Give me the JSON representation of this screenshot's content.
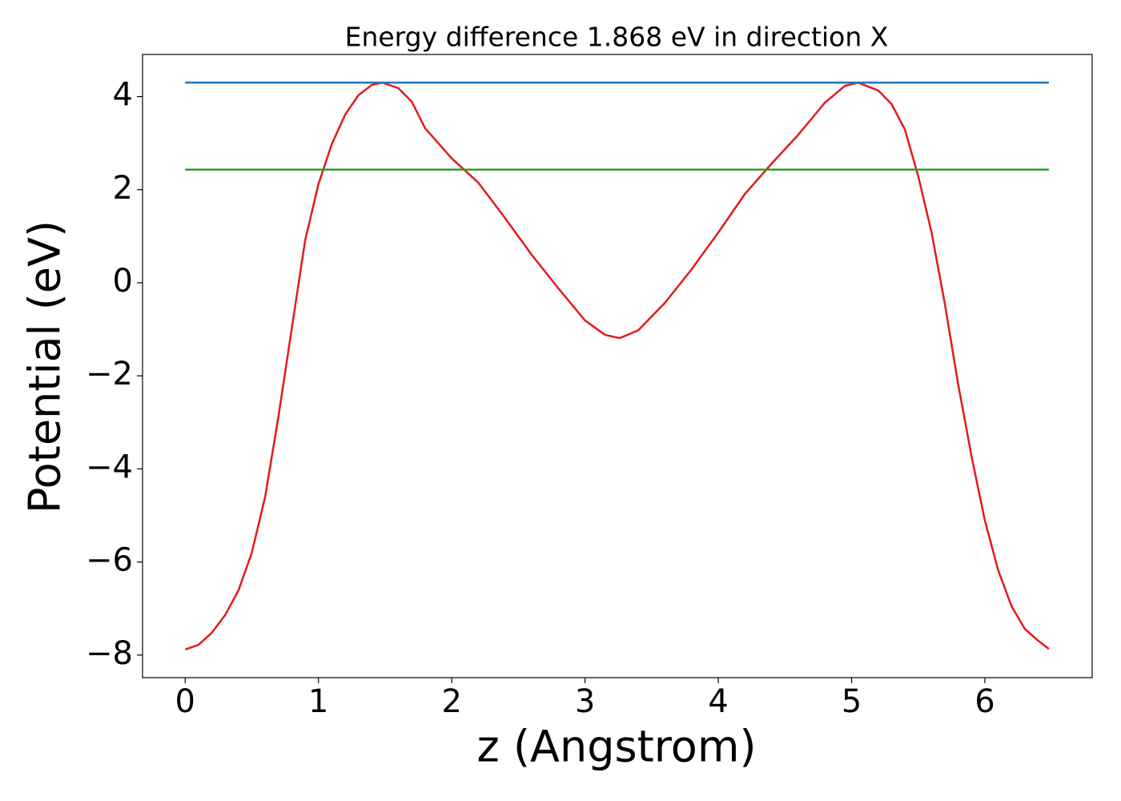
{
  "chart_data": {
    "type": "line",
    "title": "Energy difference 1.868 eV in direction X",
    "x_label": "z (Angstrom)",
    "y_label": "Potential (eV)",
    "xlim": [
      -0.32,
      6.805
    ],
    "ylim": [
      -8.485,
      4.905
    ],
    "xticks": [
      0,
      1,
      2,
      3,
      4,
      5,
      6
    ],
    "yticks": [
      {
        "value": -8,
        "label": "−8"
      },
      {
        "value": -6,
        "label": "−6"
      },
      {
        "value": -4,
        "label": "−4"
      },
      {
        "value": -2,
        "label": "−2"
      },
      0,
      2,
      4
    ],
    "series": [
      {
        "color": "#e41a1c",
        "x": [
          0,
          0.1,
          0.2,
          0.3,
          0.4,
          0.5,
          0.6,
          0.7,
          0.8,
          0.9,
          1.0,
          1.1,
          1.2,
          1.3,
          1.4,
          1.48,
          1.6,
          1.7,
          1.8,
          2.0,
          2.2,
          2.4,
          2.6,
          2.8,
          3.0,
          3.15,
          3.26,
          3.4,
          3.6,
          3.8,
          4.0,
          4.2,
          4.4,
          4.6,
          4.8,
          4.95,
          5.05,
          5.2,
          5.3,
          5.4,
          5.5,
          5.6,
          5.7,
          5.8,
          5.9,
          6.0,
          6.1,
          6.2,
          6.3,
          6.4,
          6.48
        ],
        "values": [
          -7.88,
          -7.78,
          -7.52,
          -7.14,
          -6.61,
          -5.8,
          -4.6,
          -2.87,
          -0.98,
          0.91,
          2.12,
          2.98,
          3.61,
          4.03,
          4.25,
          4.3,
          4.18,
          3.89,
          3.32,
          2.67,
          2.15,
          1.39,
          0.6,
          -0.12,
          -0.81,
          -1.12,
          -1.19,
          -1.02,
          -0.43,
          0.29,
          1.08,
          1.91,
          2.56,
          3.18,
          3.87,
          4.23,
          4.3,
          4.13,
          3.84,
          3.29,
          2.29,
          1.08,
          -0.46,
          -2.19,
          -3.73,
          -5.11,
          -6.18,
          -6.95,
          -7.44,
          -7.69,
          -7.87
        ]
      },
      {
        "color": "#1f77b4",
        "x": [
          0,
          6.48
        ],
        "values": [
          4.3,
          4.3
        ]
      },
      {
        "color": "#2ca02c",
        "x": [
          0,
          6.48
        ],
        "values": [
          2.432,
          2.432
        ]
      }
    ]
  }
}
